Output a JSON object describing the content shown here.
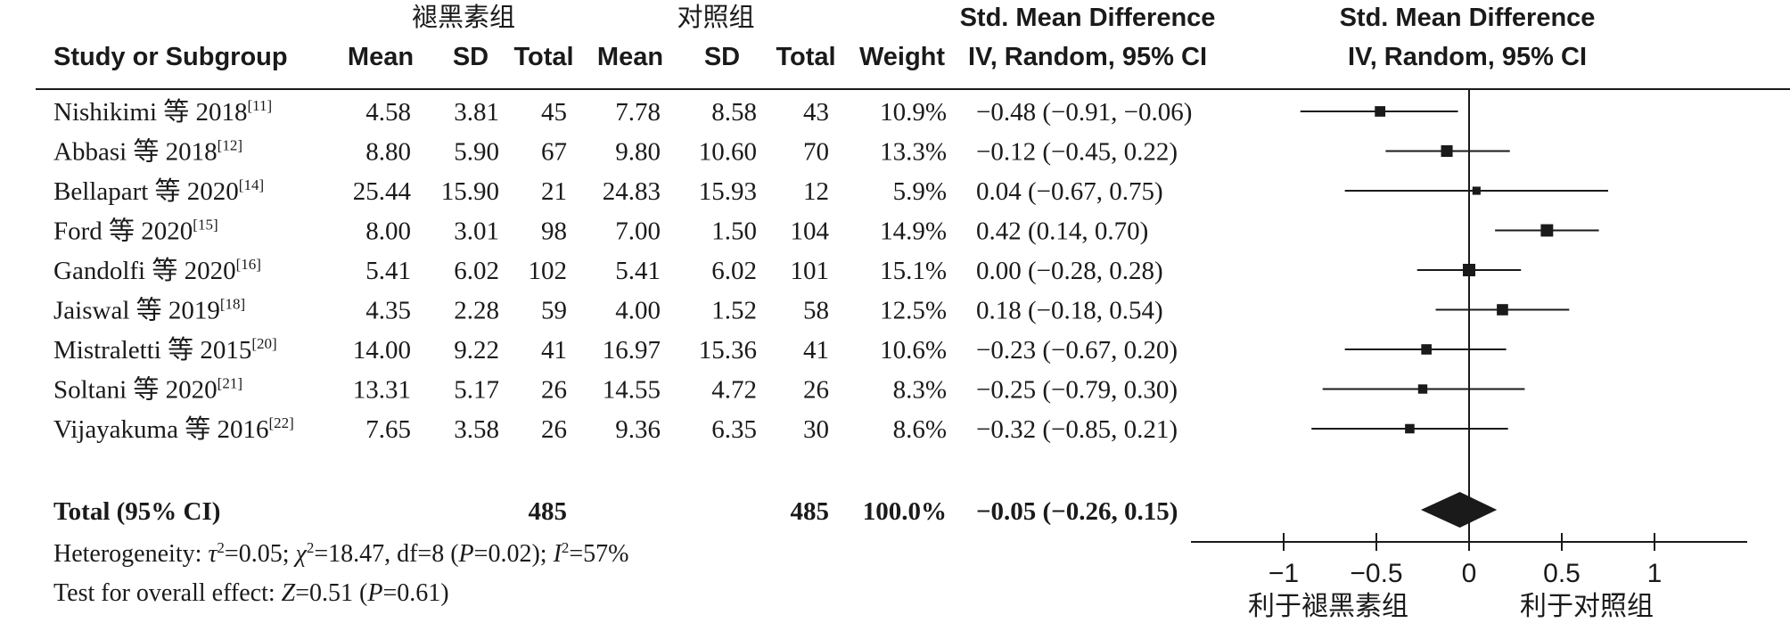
{
  "headers": {
    "group_treatment": "褪黑素组",
    "group_control": "对照组",
    "study": "Study or Subgroup",
    "mean": "Mean",
    "sd": "SD",
    "total": "Total",
    "weight": "Weight",
    "effect_title": "Std. Mean Difference",
    "effect_method": "IV, Random, 95% CI",
    "plot_title": "Std. Mean Difference",
    "plot_method": "IV, Random, 95% CI"
  },
  "studies": [
    {
      "author": "Nishikimi 等 2018",
      "ref": "[11]",
      "t_mean": "4.58",
      "t_sd": "3.81",
      "t_total": "45",
      "c_mean": "7.78",
      "c_sd": "8.58",
      "c_total": "43",
      "weight": "10.9%",
      "ci_text": "−0.48 (−0.91, −0.06)"
    },
    {
      "author": "Abbasi 等 2018",
      "ref": "[12]",
      "t_mean": "8.80",
      "t_sd": "5.90",
      "t_total": "67",
      "c_mean": "9.80",
      "c_sd": "10.60",
      "c_total": "70",
      "weight": "13.3%",
      "ci_text": "−0.12 (−0.45, 0.22)"
    },
    {
      "author": "Bellapart 等 2020",
      "ref": "[14]",
      "t_mean": "25.44",
      "t_sd": "15.90",
      "t_total": "21",
      "c_mean": "24.83",
      "c_sd": "15.93",
      "c_total": "12",
      "weight": "5.9%",
      "ci_text": "0.04 (−0.67, 0.75)"
    },
    {
      "author": "Ford 等 2020",
      "ref": "[15]",
      "t_mean": "8.00",
      "t_sd": "3.01",
      "t_total": "98",
      "c_mean": "7.00",
      "c_sd": "1.50",
      "c_total": "104",
      "weight": "14.9%",
      "ci_text": "0.42 (0.14, 0.70)"
    },
    {
      "author": "Gandolfi 等 2020",
      "ref": "[16]",
      "t_mean": "5.41",
      "t_sd": "6.02",
      "t_total": "102",
      "c_mean": "5.41",
      "c_sd": "6.02",
      "c_total": "101",
      "weight": "15.1%",
      "ci_text": "0.00 (−0.28, 0.28)"
    },
    {
      "author": "Jaiswal 等 2019",
      "ref": "[18]",
      "t_mean": "4.35",
      "t_sd": "2.28",
      "t_total": "59",
      "c_mean": "4.00",
      "c_sd": "1.52",
      "c_total": "58",
      "weight": "12.5%",
      "ci_text": "0.18 (−0.18, 0.54)"
    },
    {
      "author": "Mistraletti 等 2015",
      "ref": "[20]",
      "t_mean": "14.00",
      "t_sd": "9.22",
      "t_total": "41",
      "c_mean": "16.97",
      "c_sd": "15.36",
      "c_total": "41",
      "weight": "10.6%",
      "ci_text": "−0.23 (−0.67, 0.20)"
    },
    {
      "author": "Soltani 等 2020",
      "ref": "[21]",
      "t_mean": "13.31",
      "t_sd": "5.17",
      "t_total": "26",
      "c_mean": "14.55",
      "c_sd": "4.72",
      "c_total": "26",
      "weight": "8.3%",
      "ci_text": "−0.25 (−0.79, 0.30)"
    },
    {
      "author": "Vijayakuma 等 2016",
      "ref": "[22]",
      "t_mean": "7.65",
      "t_sd": "3.58",
      "t_total": "26",
      "c_mean": "9.36",
      "c_sd": "6.35",
      "c_total": "30",
      "weight": "8.6%",
      "ci_text": "−0.32 (−0.85, 0.21)"
    }
  ],
  "total": {
    "label": "Total (95% CI)",
    "t_total": "485",
    "c_total": "485",
    "weight": "100.0%",
    "ci_text": "−0.05 (−0.26, 0.15)"
  },
  "footer": {
    "het_prefix": "Heterogeneity: ",
    "tau": "τ",
    "tau_val": "=0.05; ",
    "chi": "χ",
    "chi_val": "=18.47, df=8 (",
    "p1": "P",
    "p1_val": "=0.02); ",
    "i": "I",
    "i_val": "=57%",
    "sq": "2",
    "overall_prefix": "Test for overall effect: ",
    "z": "Z",
    "z_val": "=0.51 (",
    "p2": "P",
    "p2_val": "=0.61)"
  },
  "axis": {
    "favours_left": "利于褪黑素组",
    "favours_right": "利于对照组"
  },
  "chart_data": {
    "type": "forest",
    "xlim": [
      -1.5,
      1.5
    ],
    "xticks": [
      -1,
      -0.5,
      0,
      0.5,
      1
    ],
    "tick_labels": [
      "−1",
      "−0.5",
      "0",
      "0.5",
      "1"
    ],
    "null_line": 0,
    "points": [
      {
        "est": -0.48,
        "lo": -0.91,
        "hi": -0.06,
        "weight": 10.9
      },
      {
        "est": -0.12,
        "lo": -0.45,
        "hi": 0.22,
        "weight": 13.3
      },
      {
        "est": 0.04,
        "lo": -0.67,
        "hi": 0.75,
        "weight": 5.9
      },
      {
        "est": 0.42,
        "lo": 0.14,
        "hi": 0.7,
        "weight": 14.9
      },
      {
        "est": 0.0,
        "lo": -0.28,
        "hi": 0.28,
        "weight": 15.1
      },
      {
        "est": 0.18,
        "lo": -0.18,
        "hi": 0.54,
        "weight": 12.5
      },
      {
        "est": -0.23,
        "lo": -0.67,
        "hi": 0.2,
        "weight": 10.6
      },
      {
        "est": -0.25,
        "lo": -0.79,
        "hi": 0.3,
        "weight": 8.3
      },
      {
        "est": -0.32,
        "lo": -0.85,
        "hi": 0.21,
        "weight": 8.6
      }
    ],
    "pooled": {
      "est": -0.05,
      "lo": -0.26,
      "hi": 0.15
    }
  }
}
